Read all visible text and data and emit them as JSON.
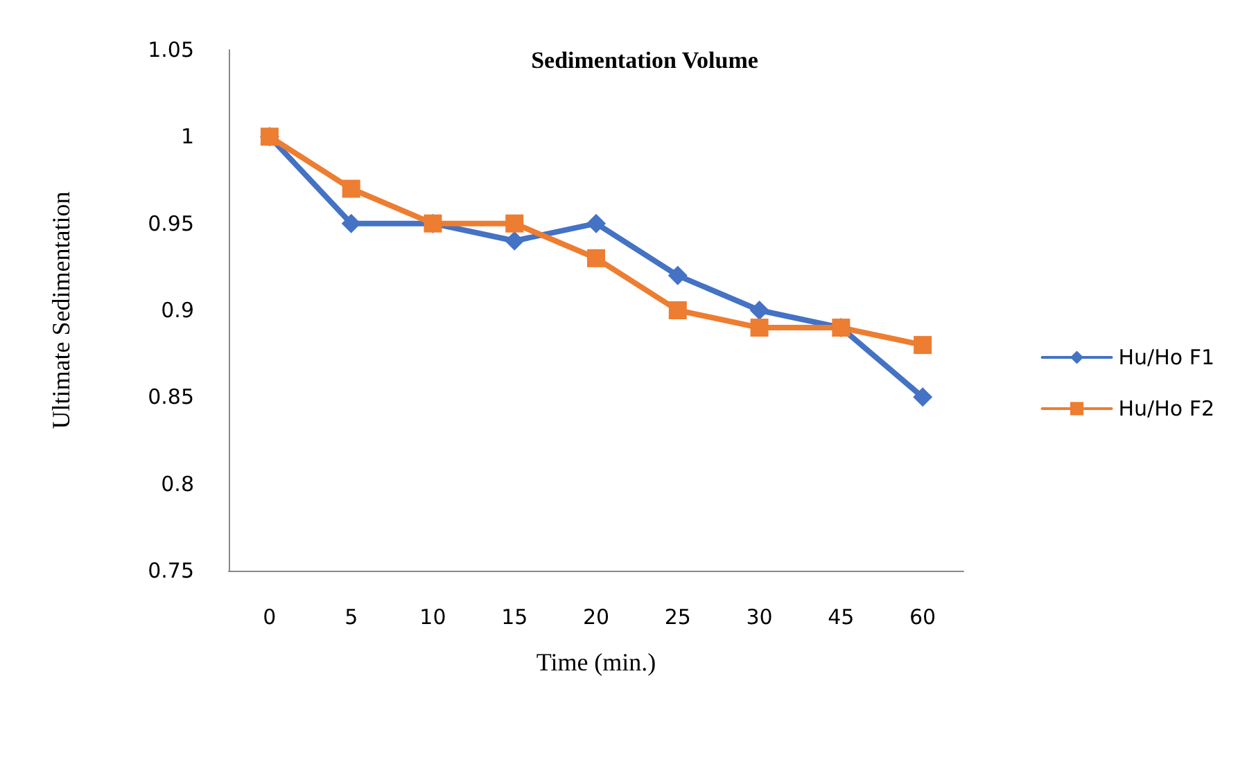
{
  "chart_data": {
    "type": "line",
    "title": "Sedimentation Volume",
    "xlabel": "Time (min.)",
    "ylabel": "Ultimate Sedimentation",
    "categories": [
      "0",
      "5",
      "10",
      "15",
      "20",
      "25",
      "30",
      "45",
      "60"
    ],
    "series": [
      {
        "name": "Hu/Ho F1",
        "color": "#4472c4",
        "marker": "diamond",
        "values": [
          1,
          0.95,
          0.95,
          0.94,
          0.95,
          0.92,
          0.9,
          0.89,
          0.85
        ]
      },
      {
        "name": "Hu/Ho F2",
        "color": "#ed7d31",
        "marker": "square",
        "values": [
          1,
          0.97,
          0.95,
          0.95,
          0.93,
          0.9,
          0.89,
          0.89,
          0.88
        ]
      }
    ],
    "ylim": [
      0.75,
      1.05
    ],
    "yticks": [
      0.75,
      0.8,
      0.85,
      0.9,
      0.95,
      1,
      1.05
    ],
    "grid": false,
    "legend": "right",
    "line_style": "solid"
  }
}
